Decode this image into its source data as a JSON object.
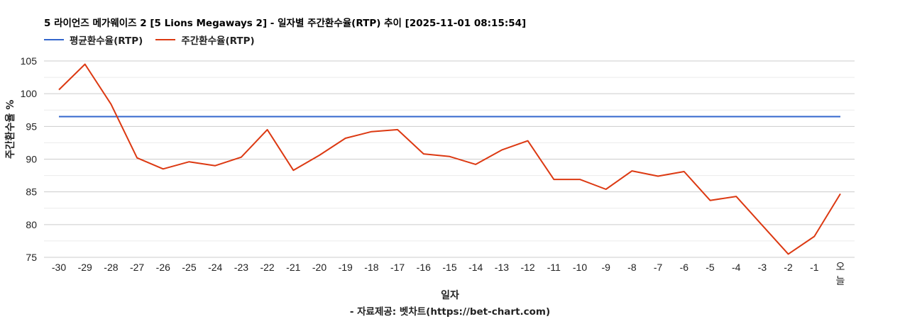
{
  "title": "5 라이언즈 메가웨이즈 2 [5 Lions Megaways 2] - 일자별 주간환수율(RTP) 추이 [2025-11-01 08:15:54]",
  "legend": [
    {
      "label": "평균환수율(RTP)",
      "color": "#3366CC"
    },
    {
      "label": "주간환수율(RTP)",
      "color": "#DC3912"
    }
  ],
  "ylabel": "주간환수율 %",
  "xlabel": "일자",
  "source": "- 자료제공: 벳차트(https://bet-chart.com)",
  "chart_data": {
    "type": "line",
    "title": "5 라이언즈 메가웨이즈 2 [5 Lions Megaways 2] - 일자별 주간환수율(RTP) 추이 [2025-11-01 08:15:54]",
    "xlabel": "일자",
    "ylabel": "주간환수율 %",
    "ylim": [
      75,
      105
    ],
    "yticks": [
      75,
      80,
      85,
      90,
      95,
      100,
      105
    ],
    "grid": true,
    "legend_position": "top",
    "categories": [
      "-30",
      "-29",
      "-28",
      "-27",
      "-26",
      "-25",
      "-24",
      "-23",
      "-22",
      "-21",
      "-20",
      "-19",
      "-18",
      "-17",
      "-16",
      "-15",
      "-14",
      "-13",
      "-12",
      "-11",
      "-10",
      "-9",
      "-8",
      "-7",
      "-6",
      "-5",
      "-4",
      "-3",
      "-2",
      "-1",
      "오늘"
    ],
    "series": [
      {
        "name": "평균환수율(RTP)",
        "color": "#3366CC",
        "values": [
          96.5,
          96.5,
          96.5,
          96.5,
          96.5,
          96.5,
          96.5,
          96.5,
          96.5,
          96.5,
          96.5,
          96.5,
          96.5,
          96.5,
          96.5,
          96.5,
          96.5,
          96.5,
          96.5,
          96.5,
          96.5,
          96.5,
          96.5,
          96.5,
          96.5,
          96.5,
          96.5,
          96.5,
          96.5,
          96.5,
          96.5
        ]
      },
      {
        "name": "주간환수율(RTP)",
        "color": "#DC3912",
        "values": [
          100.6,
          104.5,
          98.4,
          90.2,
          88.5,
          89.6,
          89.0,
          90.3,
          94.5,
          88.3,
          90.6,
          93.2,
          94.2,
          94.5,
          90.8,
          90.4,
          89.2,
          91.4,
          92.8,
          86.9,
          86.9,
          85.4,
          88.2,
          87.4,
          88.1,
          83.7,
          84.3,
          79.9,
          75.5,
          78.2,
          84.7
        ]
      }
    ]
  }
}
